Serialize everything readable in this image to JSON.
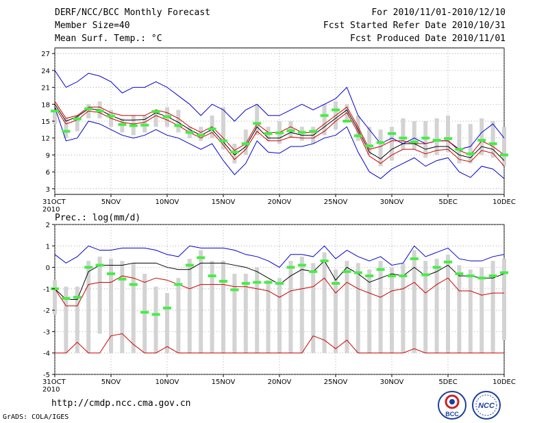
{
  "header": {
    "title": "DERF/NCC/BCC Monthly Forecast",
    "member_size": "Member Size=40",
    "variable": "Mean Surf. Temp.: °C",
    "period": "For 2010/11/01-2010/12/10",
    "fcst_started": "Fcst Started Refer Date 2010/10/31",
    "fcst_produced": "Fcst Produced Date 2010/11/01"
  },
  "footer": {
    "url": "http://cmdp.ncc.cma.gov.cn",
    "grads": "GrADS: COLA/IGES",
    "logo_bcc": "BCC",
    "logo_ncc": "NCC"
  },
  "colors": {
    "max": "#0000cc",
    "mean": "#000000",
    "spread": "#cc0000",
    "box": "#d3d3d3",
    "median": "#44ee44"
  },
  "chart_data": [
    {
      "type": "line",
      "title": "Mean Surf. Temp.: °C",
      "xlabel": "",
      "ylabel": "",
      "x_tick_labels": [
        "31OCT",
        "5NOV",
        "10NOV",
        "15NOV",
        "20NOV",
        "25NOV",
        "30NOV",
        "5DEC",
        "10DEC"
      ],
      "x_year_label": "2010",
      "xlim_days": [
        0,
        40
      ],
      "ylim": [
        2,
        28
      ],
      "y_ticks": [
        3,
        6,
        9,
        12,
        15,
        18,
        21,
        24,
        27
      ],
      "grid": true,
      "series": [
        {
          "name": "max",
          "color": "#0000cc",
          "values": [
            24,
            21,
            22,
            23.5,
            23,
            22,
            20,
            21,
            21,
            22,
            21,
            19.5,
            18,
            16,
            18,
            17,
            15,
            17,
            18,
            16,
            16,
            17,
            18,
            17,
            18,
            19,
            21,
            16,
            13.5,
            11,
            12,
            11,
            12,
            11,
            11.5,
            11.5,
            10,
            10.5,
            13,
            14.5,
            12
          ]
        },
        {
          "name": "upper",
          "color": "#cc0000",
          "values": [
            18.5,
            15.5,
            16,
            17.5,
            17.5,
            16.5,
            16,
            16,
            16,
            17,
            16.5,
            15.5,
            14,
            13,
            14,
            12,
            9.8,
            11,
            14.5,
            13,
            13,
            14,
            13,
            13,
            14.5,
            16,
            17.5,
            14,
            10,
            10.5,
            11.5,
            11.5,
            11,
            11,
            11.5,
            11.5,
            9.8,
            9,
            11.5,
            10.5,
            9
          ]
        },
        {
          "name": "mean",
          "color": "#000000",
          "values": [
            18,
            15,
            15.8,
            17.2,
            17,
            16,
            15.2,
            15.2,
            15.3,
            16.5,
            15.8,
            14.8,
            13.5,
            12.5,
            13.5,
            11.3,
            9,
            10.5,
            14,
            12,
            12,
            13,
            12.5,
            12.5,
            14,
            15.5,
            17,
            13.5,
            9.5,
            8.3,
            10,
            11,
            11,
            10,
            10.5,
            10.5,
            9,
            8.5,
            10.5,
            10,
            8
          ]
        },
        {
          "name": "lower",
          "color": "#cc0000",
          "values": [
            17.5,
            14.5,
            15.2,
            16.8,
            16.5,
            15.5,
            14.8,
            14.5,
            14.8,
            16,
            15.2,
            14.2,
            13,
            12,
            13,
            10.8,
            8.2,
            10,
            13.2,
            11.5,
            11.5,
            12.2,
            12,
            12,
            13.2,
            15,
            16.5,
            13,
            8.8,
            7.5,
            9,
            10,
            10,
            9.2,
            9.8,
            10,
            8.2,
            7.8,
            9.8,
            9.3,
            7
          ]
        },
        {
          "name": "min",
          "color": "#0000cc",
          "values": [
            17.5,
            11.5,
            12,
            15,
            14.5,
            13.5,
            12.5,
            12,
            12.5,
            13.5,
            12.5,
            12,
            11,
            10,
            11,
            8,
            5.5,
            7.5,
            11.5,
            9.5,
            9.3,
            10.5,
            10.5,
            11,
            12,
            12.5,
            14,
            9.5,
            6,
            4.8,
            6.5,
            7.5,
            8.5,
            7,
            8,
            8.5,
            6,
            5,
            7,
            6.5,
            4.8
          ]
        },
        {
          "name": "median",
          "color": "#44ee44",
          "values": [
            16.8,
            13.2,
            15.4,
            17.2,
            16.8,
            15.9,
            14.4,
            14.2,
            14.3,
            16.7,
            15.8,
            14.2,
            13,
            12.5,
            13.6,
            11.5,
            9.5,
            11,
            14.6,
            12.8,
            12.9,
            13.3,
            13,
            13.2,
            16,
            17,
            15,
            12.4,
            10.6,
            11.2,
            12.8,
            12,
            11.3,
            12,
            11.6,
            11.9,
            10,
            9.2,
            11.6,
            11,
            9
          ]
        }
      ],
      "boxes_low": [
        14.5,
        12,
        13.2,
        15.5,
        15.5,
        14,
        13,
        12.5,
        13,
        14,
        14,
        13,
        12,
        11.5,
        12,
        10,
        7.5,
        9,
        12.5,
        11.5,
        11,
        12,
        11.5,
        11,
        12.5,
        13.5,
        15,
        11.5,
        9,
        7,
        8,
        10,
        10,
        8.5,
        9,
        9.5,
        7.5,
        7.5,
        9,
        8.5,
        7
      ],
      "boxes_high": [
        16.8,
        15.5,
        16,
        18,
        18.5,
        17,
        15.5,
        16,
        16,
        17,
        17.5,
        17,
        14,
        14,
        16,
        17.5,
        11,
        13.5,
        18,
        14,
        15,
        15,
        14,
        14,
        18,
        18.5,
        18,
        16,
        14,
        13.5,
        14,
        15.5,
        15,
        15,
        15.5,
        16,
        14.5,
        14.5,
        15.5,
        15,
        14
      ]
    },
    {
      "type": "line",
      "title": "Prec.: log(mm/d)",
      "xlabel": "",
      "ylabel": "",
      "x_tick_labels": [
        "31OCT",
        "5NOV",
        "10NOV",
        "15NOV",
        "20NOV",
        "25NOV",
        "30NOV",
        "5DEC",
        "10DEC"
      ],
      "x_year_label": "2010",
      "xlim_days": [
        0,
        40
      ],
      "ylim": [
        -5,
        2
      ],
      "y_ticks": [
        -5,
        -4,
        -3,
        -2,
        -1,
        0,
        1,
        2
      ],
      "grid": true,
      "series": [
        {
          "name": "max",
          "color": "#0000cc",
          "values": [
            0.6,
            0.2,
            0.5,
            1,
            0.8,
            0.8,
            0.9,
            0.9,
            0.9,
            0.8,
            0.6,
            0.5,
            1,
            0.9,
            0.9,
            0.9,
            0.8,
            0.6,
            0.5,
            0.3,
            0,
            0.6,
            0.6,
            0.5,
            1,
            0.4,
            0.8,
            0.5,
            0.3,
            0.5,
            0.1,
            0.2,
            1,
            0.5,
            0.7,
            0.9,
            0.4,
            0.3,
            0.3,
            0.5,
            0.6
          ]
        },
        {
          "name": "mean",
          "color": "#000000",
          "values": [
            -1,
            -1.5,
            -1.5,
            -0.2,
            0.1,
            0.1,
            0.1,
            0.2,
            0.2,
            0.2,
            0,
            -0.1,
            -0.1,
            0.2,
            0.2,
            0.2,
            0.1,
            0,
            -0.2,
            -0.5,
            -0.8,
            -0.4,
            -0.1,
            -0.2,
            0.3,
            -0.6,
            0,
            -0.3,
            -0.7,
            -0.5,
            -0.3,
            -0.4,
            0,
            -0.4,
            -0.2,
            0.1,
            -0.4,
            -0.4,
            -0.5,
            -0.5,
            -0.3
          ]
        },
        {
          "name": "spread",
          "color": "#cc0000",
          "values": [
            -1,
            -1.8,
            -1.8,
            -0.8,
            -0.7,
            -0.7,
            -0.4,
            -0.5,
            -0.7,
            -0.5,
            -0.6,
            -0.8,
            -1,
            -0.8,
            -0.8,
            -0.8,
            -0.9,
            -0.9,
            -1,
            -1.1,
            -1.4,
            -1.1,
            -1,
            -0.9,
            -0.5,
            -1.2,
            -0.7,
            -1,
            -1.2,
            -1.4,
            -1.1,
            -1,
            -0.7,
            -1.2,
            -0.8,
            -0.5,
            -1.1,
            -1.1,
            -1.3,
            -1.2,
            -1.2
          ]
        },
        {
          "name": "min",
          "color": "#cc0000",
          "values": [
            -4,
            -4,
            -3.5,
            -4,
            -4,
            -3.2,
            -3.1,
            -3.6,
            -4,
            -4,
            -3.7,
            -4,
            -4,
            -4,
            -4,
            -4,
            -4,
            -4,
            -4,
            -4,
            -4,
            -4,
            -4,
            -3.2,
            -3.4,
            -3.8,
            -3.4,
            -4,
            -4,
            -4,
            -4,
            -4,
            -3.8,
            -4,
            -4,
            -4,
            -4,
            -4,
            -4,
            -4,
            -4
          ]
        },
        {
          "name": "median",
          "color": "#44ee44",
          "values": [
            -1,
            -1.45,
            -1.4,
            0,
            0.1,
            -0.3,
            -0.55,
            -0.8,
            -2.1,
            -2.2,
            -1.9,
            -0.8,
            0.1,
            0.45,
            -0.4,
            -0.65,
            -1.05,
            -0.75,
            -0.7,
            -0.7,
            -0.75,
            0,
            0.1,
            -0.2,
            0.3,
            -0.75,
            -0.2,
            -0.25,
            -0.4,
            -0.1,
            -0.4,
            -0.4,
            0.4,
            -0.35,
            0,
            0.25,
            -0.3,
            -0.4,
            -0.5,
            -0.4,
            -0.25
          ]
        }
      ],
      "boxes_low": [
        -2.2,
        -4,
        -4,
        -4,
        -3.1,
        -4,
        -4,
        -4,
        -4,
        -4,
        -4,
        -4,
        -4,
        -4,
        -4,
        -4,
        -4,
        -4,
        -4,
        -4,
        -4,
        -4,
        -4,
        -4,
        -4,
        -4,
        -4,
        -4,
        -4,
        -4,
        -4,
        -4,
        -4,
        -4,
        -4,
        -4,
        -4,
        -4,
        -4,
        -4,
        -3.4
      ],
      "boxes_high": [
        -0.6,
        -0.9,
        -0.9,
        0.3,
        0.5,
        0.4,
        0.3,
        0.2,
        -0.3,
        -0.9,
        -1.2,
        -0.5,
        0.4,
        0.8,
        0.3,
        0.3,
        -0.3,
        -0.3,
        0,
        -0.6,
        -0.5,
        0.3,
        0.5,
        0.2,
        0.7,
        -0.1,
        0.3,
        0.2,
        -0.1,
        0.3,
        0,
        0.2,
        0.8,
        0.3,
        0.4,
        0.6,
        0.1,
        -0.1,
        0,
        0.3,
        0.4
      ]
    }
  ]
}
